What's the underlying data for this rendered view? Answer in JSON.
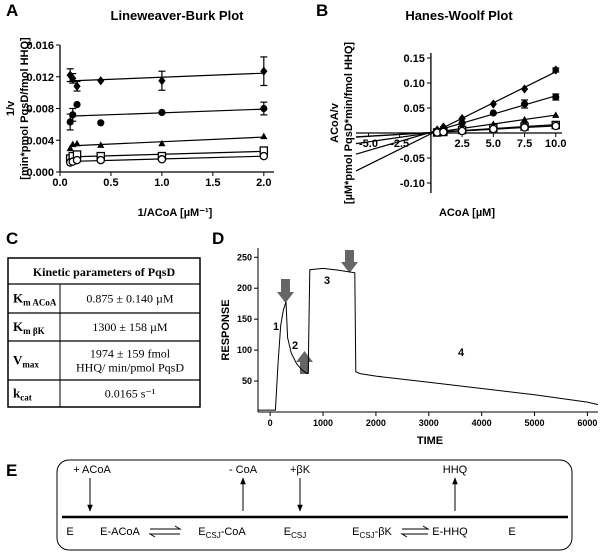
{
  "panel_labels": [
    "A",
    "B",
    "C",
    "D",
    "E"
  ],
  "chart_data": [
    {
      "type": "scatter",
      "title": "Lineweaver-Burk Plot",
      "xlabel": "1/ACoA [µM⁻¹]",
      "ylabel": [
        "1/v",
        "[min*pmol PqsD/fmol HHQ]"
      ],
      "xlim": [
        0,
        2.1
      ],
      "ylim": [
        0,
        0.016
      ],
      "xticks": [
        {
          "value": 0,
          "label": "0.0"
        },
        0.5,
        {
          "value": 1,
          "label": "1.0"
        },
        1.5,
        {
          "value": 2,
          "label": "2.0"
        }
      ],
      "yticks": [
        {
          "value": 0,
          "label": "0.000"
        },
        0.004,
        0.008,
        0.012,
        0.016
      ],
      "trendline": "linear",
      "x": [
        0.1,
        0.125,
        0.167,
        0.4,
        1.0,
        2.0
      ],
      "series": [
        {
          "marker": "diamond",
          "color": "#000000",
          "values": [
            0.0122,
            0.0118,
            0.0108,
            0.0115,
            0.0115,
            0.0127
          ],
          "errors": [
            0.0008,
            0.0006,
            0.0006,
            null,
            0.0012,
            0.0018
          ]
        },
        {
          "marker": "circle",
          "color": "#000000",
          "values": [
            0.0063,
            0.0072,
            0.0085,
            0.0062,
            0.0075,
            0.008
          ],
          "errors": [
            0.001,
            0.0008,
            null,
            null,
            null,
            0.0008
          ]
        },
        {
          "marker": "triangle",
          "color": "#000000",
          "values": [
            0.003,
            0.0035,
            0.0036,
            0.0034,
            0.0036,
            0.0045
          ],
          "errors": [
            null,
            null,
            null,
            null,
            null,
            null
          ]
        },
        {
          "marker": "open-square",
          "color": "#000000",
          "values": [
            0.0017,
            0.002,
            0.0022,
            0.002,
            0.002,
            0.0027
          ],
          "errors": [
            null,
            null,
            null,
            null,
            null,
            0.0004
          ]
        },
        {
          "marker": "open-circle",
          "color": "#000000",
          "values": [
            0.0012,
            0.0013,
            0.0015,
            0.0015,
            0.0016,
            0.002
          ],
          "errors": [
            null,
            null,
            null,
            null,
            null,
            null
          ]
        }
      ]
    },
    {
      "type": "scatter",
      "title": "Hanes-Woolf Plot",
      "xlabel": "ACoA [µM]",
      "ylabel": [
        "ACoA/v",
        "[µM*pmol PqsD*min/fmol HHQ]"
      ],
      "xlim": [
        -6,
        10.5
      ],
      "ylim": [
        -0.12,
        0.16
      ],
      "xticks": [
        {
          "value": -5,
          "label": "-5.0"
        },
        -2.5,
        2.5,
        {
          "value": 5,
          "label": "5.0"
        },
        7.5,
        {
          "value": 10,
          "label": "10.0"
        }
      ],
      "yticks": [
        {
          "value": -0.1,
          "label": "-0.10"
        },
        -0.05,
        0.05,
        {
          "value": 0.1,
          "label": "0.10"
        },
        0.15
      ],
      "trendline": "linear",
      "x": [
        0.5,
        1.0,
        2.5,
        5.0,
        7.5,
        10.0
      ],
      "series": [
        {
          "marker": "diamond",
          "color": "#000000",
          "values": [
            0.006,
            0.012,
            0.029,
            0.058,
            0.088,
            0.126
          ],
          "errors": [
            null,
            null,
            null,
            null,
            null,
            0.004
          ]
        },
        {
          "marker": "circle",
          "color": "#000000",
          "values": [
            0.004,
            0.008,
            0.02,
            0.04,
            0.058,
            0.072
          ],
          "errors": [
            null,
            null,
            null,
            null,
            0.008,
            0.006
          ]
        },
        {
          "marker": "triangle",
          "color": "#000000",
          "values": [
            0.002,
            0.004,
            0.009,
            0.018,
            0.027,
            0.036
          ],
          "errors": [
            null,
            null,
            null,
            null,
            null,
            null
          ]
        },
        {
          "marker": "open-square",
          "color": "#000000",
          "values": [
            0.001,
            0.002,
            0.006,
            0.01,
            0.013,
            0.016
          ],
          "errors": [
            null,
            null,
            null,
            null,
            null,
            0.003
          ]
        },
        {
          "marker": "open-circle",
          "color": "#000000",
          "values": [
            0.001,
            0.002,
            0.004,
            0.008,
            0.011,
            0.014
          ],
          "errors": [
            null,
            null,
            null,
            null,
            null,
            null
          ]
        }
      ]
    },
    {
      "type": "line",
      "xlabel": "TIME",
      "ylabel": "RESPONSE",
      "xlim": [
        -230,
        6200
      ],
      "ylim": [
        0,
        265
      ],
      "xticks": [
        0,
        1000,
        2000,
        3000,
        4000,
        5000,
        6000
      ],
      "yticks": [
        50,
        100,
        150,
        200,
        250
      ],
      "color": "#000000",
      "annotations": [
        "1",
        "2",
        "3",
        "4"
      ],
      "x": [
        -230,
        100,
        150,
        200,
        250,
        300,
        330,
        400,
        500,
        600,
        700,
        720,
        750,
        1000,
        1300,
        1600,
        1620,
        1700,
        2000,
        3000,
        4000,
        5000,
        6000,
        6200
      ],
      "values": [
        3,
        3,
        80,
        140,
        165,
        178,
        120,
        95,
        78,
        68,
        62,
        65,
        230,
        232,
        229,
        225,
        65,
        62,
        58,
        48,
        38,
        28,
        16,
        12
      ]
    }
  ],
  "table": {
    "title": "Kinetic parameters of PqsD",
    "rows": [
      [
        {
          "symbol": "K",
          "sub": "m ACoA"
        },
        [
          "0.875 ± 0.140 µM"
        ]
      ],
      [
        {
          "symbol": "K",
          "sub": "m βK"
        },
        [
          "1300 ± 158 µM"
        ]
      ],
      [
        {
          "symbol": "V",
          "sub": "max"
        },
        [
          "1974 ± 159 fmol",
          "HHQ/ min/pmol PqsD"
        ]
      ],
      [
        {
          "symbol": "k",
          "sub": "cat"
        },
        [
          "0.0165 s⁻¹"
        ]
      ]
    ]
  },
  "diagram": {
    "inputs": [
      "+ ACoA",
      "- CoA",
      "+βK",
      "HHQ"
    ],
    "states": [
      [
        "E"
      ],
      [
        "E-ACoA"
      ],
      [
        "E",
        "CSJ",
        "-CoA"
      ],
      [
        "E",
        "CSJ"
      ],
      [
        "E",
        "CSJ",
        "-βK"
      ],
      [
        "E-HHQ"
      ],
      [
        "E"
      ]
    ]
  }
}
